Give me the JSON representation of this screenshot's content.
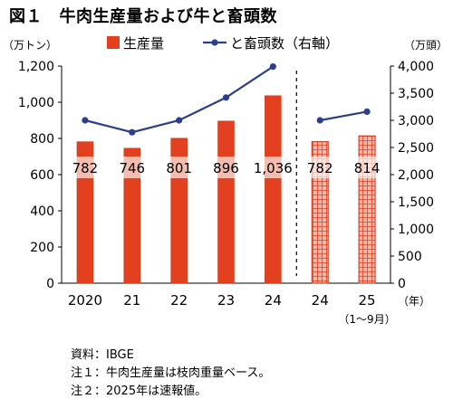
{
  "figure": {
    "title": "図１　牛肉生産量および牛と畜頭数"
  },
  "chart_data": {
    "type": "bar",
    "categories": [
      "2020",
      "21",
      "22",
      "23",
      "24",
      "24",
      "25"
    ],
    "category_sublabels": [
      "",
      "",
      "",
      "",
      "",
      "",
      "（1～9月）"
    ],
    "x_unit": "（年）",
    "series": [
      {
        "name": "生産量",
        "type": "bar",
        "axis": "left",
        "values": [
          782,
          746,
          801,
          896,
          1036,
          782,
          814
        ],
        "data_labels": [
          "782",
          "746",
          "801",
          "896",
          "1,036",
          "782",
          "814"
        ],
        "color": "#e2401f",
        "hatched_from_index": 5
      },
      {
        "name": "と畜頭数（右軸）",
        "type": "line",
        "axis": "right",
        "segments": [
          {
            "x_index": [
              0,
              1,
              2,
              3,
              4
            ],
            "values": [
              3000,
              2780,
              3000,
              3420,
              3990
            ]
          },
          {
            "x_index": [
              5,
              6
            ],
            "values": [
              3000,
              3160
            ]
          }
        ],
        "color": "#2b3f8c"
      }
    ],
    "left_axis": {
      "label": "（万トン）",
      "range": [
        0,
        1200
      ],
      "ticks": [
        "0",
        "200",
        "400",
        "600",
        "800",
        "1,000",
        "1,200"
      ]
    },
    "right_axis": {
      "label": "（万頭）",
      "range": [
        0,
        4000
      ],
      "ticks": [
        "0",
        "500",
        "1,000",
        "1,500",
        "2,000",
        "2,500",
        "3,000",
        "3,500",
        "4,000"
      ]
    },
    "separator_after_index": 4,
    "legend_position": "top",
    "grid": false
  },
  "notes": {
    "source": "資料：IBGE",
    "note1": "注１：牛肉生産量は枝肉重量ベース。",
    "note2": "注２：2025年は速報値。"
  }
}
